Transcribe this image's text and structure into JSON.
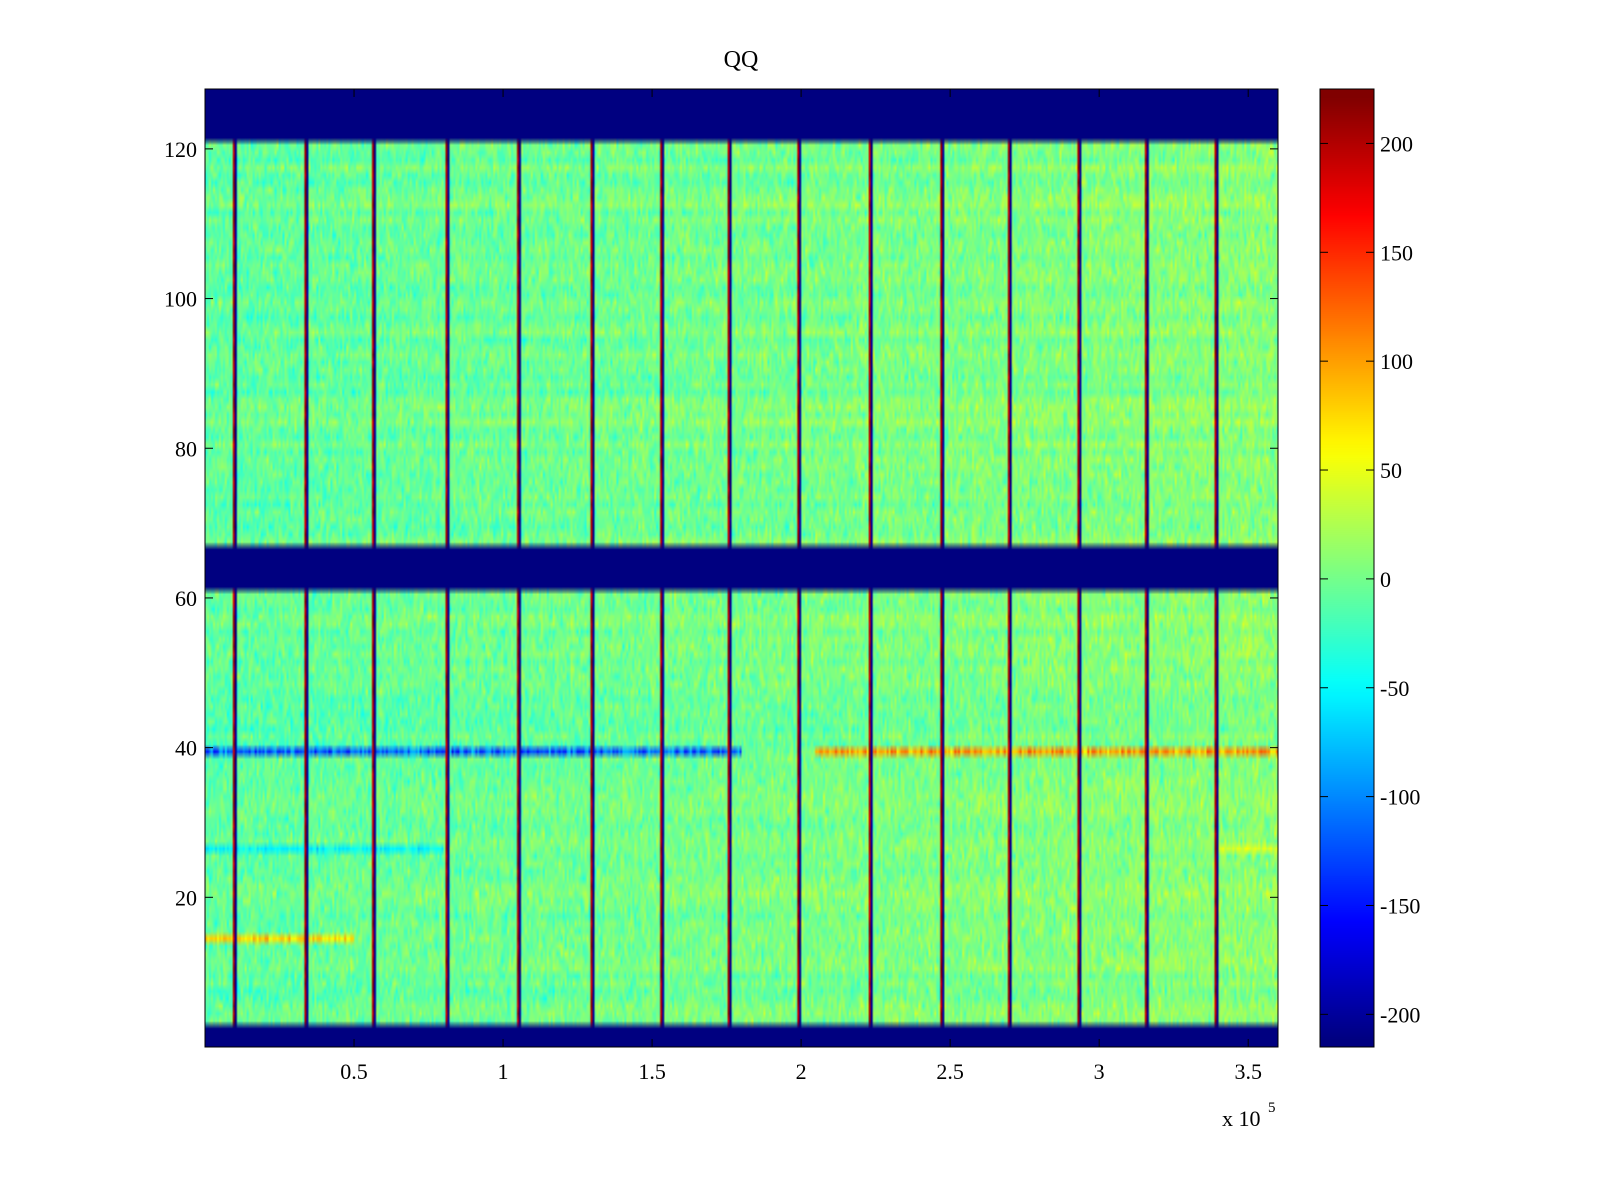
{
  "chart_data": {
    "type": "heatmap",
    "title": "QQ",
    "xlabel": "",
    "ylabel": "",
    "x_multiplier": "x 10",
    "x_multiplier_exponent": "5",
    "xlim": [
      0,
      3.6
    ],
    "ylim": [
      0,
      128
    ],
    "x_ticks": [
      0.5,
      1,
      1.5,
      2,
      2.5,
      3,
      3.5
    ],
    "x_tick_labels": [
      "0.5",
      "1",
      "1.5",
      "2",
      "2.5",
      "3",
      "3.5"
    ],
    "y_ticks": [
      20,
      40,
      60,
      80,
      100,
      120
    ],
    "y_tick_labels": [
      "20",
      "40",
      "60",
      "80",
      "100",
      "120"
    ],
    "colorbar": {
      "colormap": "jet",
      "min": -215,
      "max": 225,
      "ticks": [
        -200,
        -150,
        -100,
        -50,
        0,
        50,
        100,
        150,
        200
      ],
      "tick_labels": [
        "-200",
        "-150",
        "-100",
        "-50",
        "0",
        "50",
        "100",
        "150",
        "200"
      ]
    },
    "empty_row_bands": [
      [
        0,
        3
      ],
      [
        61,
        67
      ],
      [
        121,
        128
      ]
    ],
    "segment_boundaries_x": [
      0.1,
      0.34,
      0.57,
      0.81,
      1.05,
      1.3,
      1.53,
      1.76,
      1.99,
      2.23,
      2.47,
      2.7,
      2.93,
      3.16,
      3.39
    ],
    "anomalous_rows": [
      {
        "row": 39,
        "x_from": 0,
        "x_to": 1.8,
        "value": -140
      },
      {
        "row": 39,
        "x_from": 2.05,
        "x_to": 3.6,
        "value": 120
      },
      {
        "row": 14,
        "x_from": 0,
        "x_to": 0.5,
        "value": 90
      },
      {
        "row": 26,
        "x_from": 0,
        "x_to": 0.8,
        "value": -60
      },
      {
        "row": 26,
        "x_from": 3.4,
        "x_to": 3.6,
        "value": 50
      }
    ],
    "value_range_typical": [
      -60,
      60
    ],
    "grid": false
  }
}
